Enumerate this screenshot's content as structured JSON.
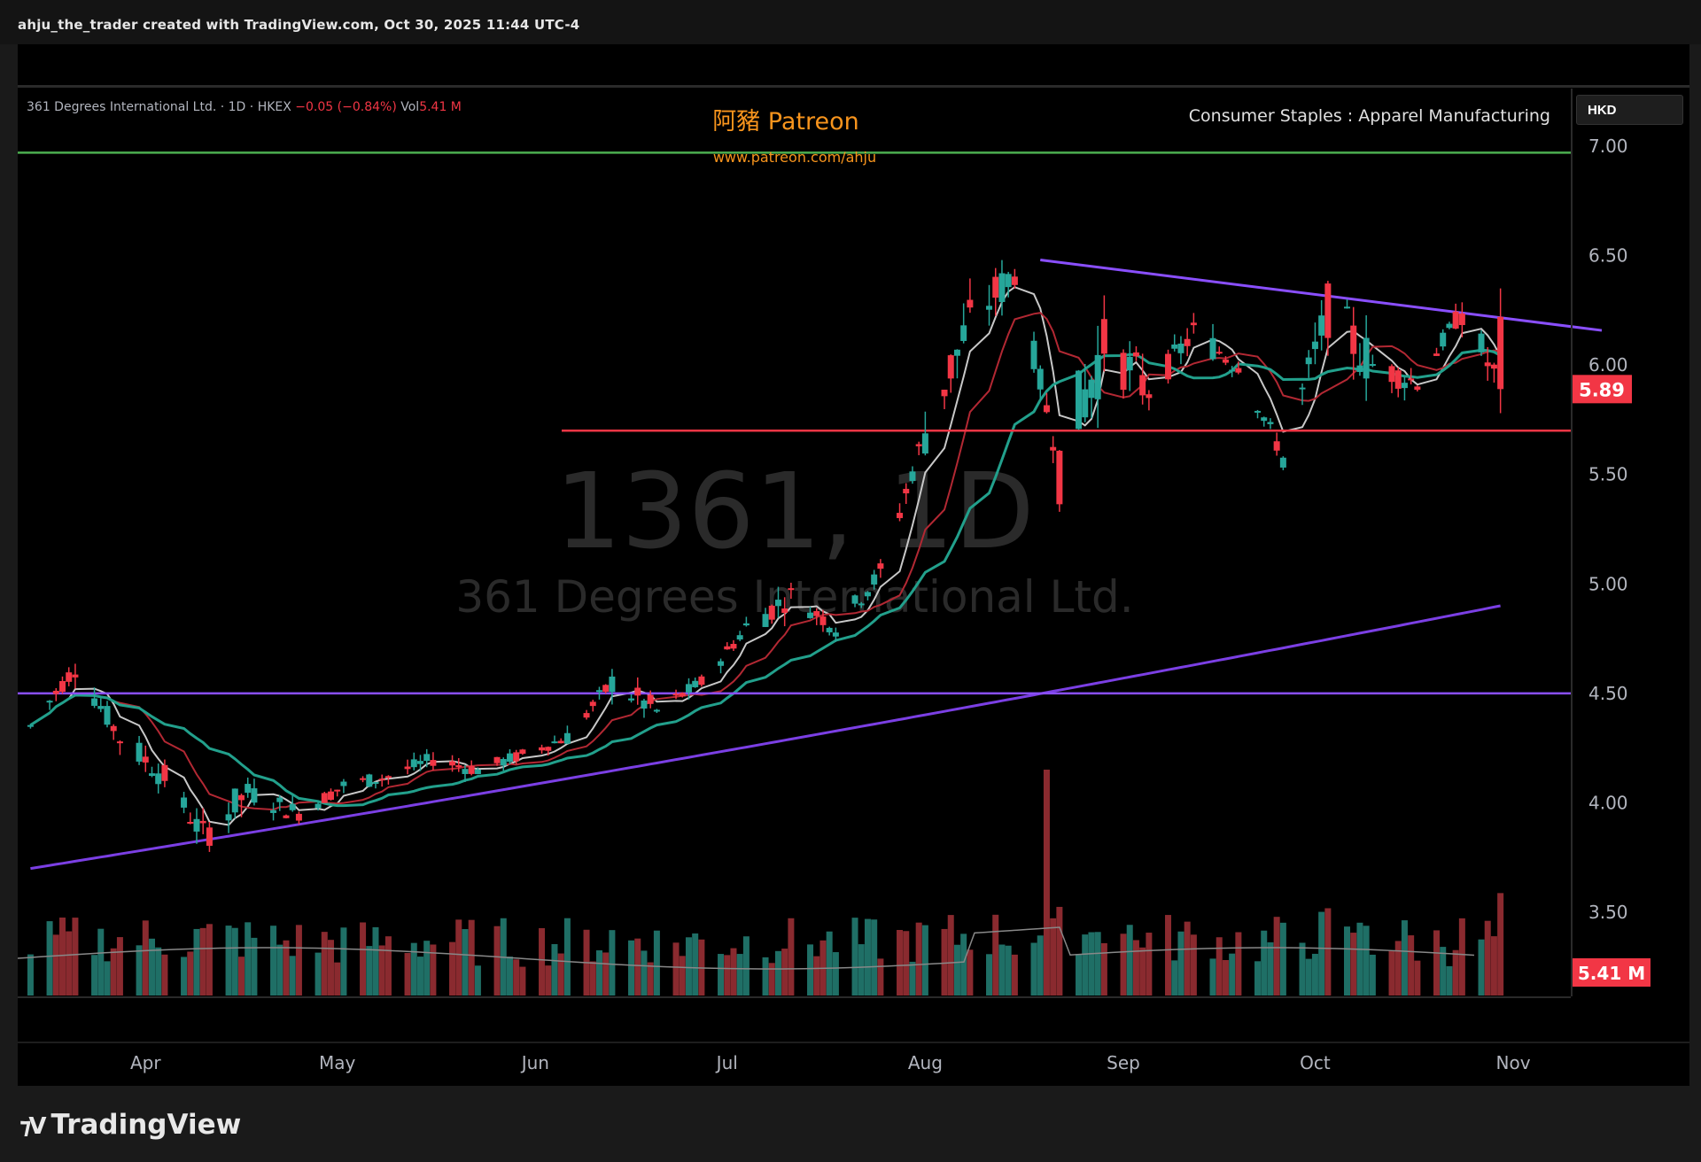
{
  "attribution": "ahju_the_trader created with TradingView.com, Oct 30, 2025 11:44 UTC-4",
  "legend": {
    "instrument": "361 Degrees International Ltd. · 1D · HKEX",
    "change": "−0.05 (−0.84%)",
    "vol_label": "Vol",
    "vol_value": "5.41 M"
  },
  "watermark": {
    "title": "阿豬 Patreon",
    "url": "www.patreon.com/ahju"
  },
  "sector": "Consumer Staples : Apparel Manufacturing",
  "currency": "HKD",
  "symbol_watermark": "1361, 1D",
  "name_watermark": "361 Degrees International Ltd.",
  "brand": "TradingView",
  "colors": {
    "up": "#26a69a",
    "down": "#f23645",
    "ma_fast": "#c8c8c8",
    "ma_mid": "#b22833",
    "ma_slow": "#22a08c",
    "ma_long": "#7b3fe4",
    "resistance": "#4caf50",
    "support": "#f23645",
    "trendline": "#8a4fff"
  },
  "chart_data": {
    "type": "candlestick",
    "x_axis_labels": [
      "Apr",
      "May",
      "Jun",
      "Jul",
      "Aug",
      "Sep",
      "Oct",
      "Nov"
    ],
    "y_ticks": [
      "7.00",
      "6.50",
      "6.00",
      "5.50",
      "5.00",
      "4.50",
      "4.00",
      "3.50"
    ],
    "ylim": [
      3.2,
      7.1
    ],
    "last_price": "5.89",
    "last_volume": "5.41 M",
    "ohlc_sampled": [
      {
        "date": "2025-03-14",
        "o": 4.25,
        "h": 4.42,
        "l": 4.18,
        "c": 4.35
      },
      {
        "date": "2025-03-21",
        "o": 4.4,
        "h": 4.68,
        "l": 4.38,
        "c": 4.62
      },
      {
        "date": "2025-03-28",
        "o": 4.58,
        "h": 4.6,
        "l": 4.22,
        "c": 4.3
      },
      {
        "date": "2025-04-04",
        "o": 4.3,
        "h": 4.38,
        "l": 4.05,
        "c": 4.12
      },
      {
        "date": "2025-04-10",
        "o": 4.1,
        "h": 4.15,
        "l": 3.7,
        "c": 3.85
      },
      {
        "date": "2025-04-17",
        "o": 3.85,
        "h": 4.1,
        "l": 3.82,
        "c": 4.05
      },
      {
        "date": "2025-04-25",
        "o": 4.05,
        "h": 4.1,
        "l": 3.9,
        "c": 3.95
      },
      {
        "date": "2025-05-02",
        "o": 3.95,
        "h": 4.12,
        "l": 3.92,
        "c": 4.08
      },
      {
        "date": "2025-05-09",
        "o": 4.08,
        "h": 4.18,
        "l": 3.98,
        "c": 4.12
      },
      {
        "date": "2025-05-16",
        "o": 4.12,
        "h": 4.26,
        "l": 4.05,
        "c": 4.2
      },
      {
        "date": "2025-05-23",
        "o": 4.2,
        "h": 4.28,
        "l": 4.1,
        "c": 4.15
      },
      {
        "date": "2025-05-30",
        "o": 4.15,
        "h": 4.25,
        "l": 4.08,
        "c": 4.22
      },
      {
        "date": "2025-06-06",
        "o": 4.22,
        "h": 4.38,
        "l": 4.15,
        "c": 4.3
      },
      {
        "date": "2025-06-13",
        "o": 4.3,
        "h": 4.62,
        "l": 4.28,
        "c": 4.55
      },
      {
        "date": "2025-06-20",
        "o": 4.55,
        "h": 4.58,
        "l": 4.38,
        "c": 4.42
      },
      {
        "date": "2025-06-27",
        "o": 4.42,
        "h": 4.6,
        "l": 4.4,
        "c": 4.55
      },
      {
        "date": "2025-07-04",
        "o": 4.55,
        "h": 4.85,
        "l": 4.5,
        "c": 4.8
      },
      {
        "date": "2025-07-11",
        "o": 4.8,
        "h": 5.0,
        "l": 4.75,
        "c": 4.95
      },
      {
        "date": "2025-07-18",
        "o": 4.95,
        "h": 4.98,
        "l": 4.72,
        "c": 4.8
      },
      {
        "date": "2025-07-25",
        "o": 4.8,
        "h": 5.1,
        "l": 4.78,
        "c": 5.05
      },
      {
        "date": "2025-08-01",
        "o": 5.05,
        "h": 5.75,
        "l": 5.0,
        "c": 5.7
      },
      {
        "date": "2025-08-08",
        "o": 5.7,
        "h": 6.25,
        "l": 5.65,
        "c": 6.2
      },
      {
        "date": "2025-08-15",
        "o": 6.2,
        "h": 6.48,
        "l": 6.1,
        "c": 6.42
      },
      {
        "date": "2025-08-22",
        "o": 6.45,
        "h": 6.5,
        "l": 5.42,
        "c": 5.55
      },
      {
        "date": "2025-08-29",
        "o": 5.55,
        "h": 6.2,
        "l": 5.5,
        "c": 6.1
      },
      {
        "date": "2025-09-05",
        "o": 6.1,
        "h": 6.15,
        "l": 5.8,
        "c": 5.88
      },
      {
        "date": "2025-09-12",
        "o": 5.88,
        "h": 6.22,
        "l": 5.85,
        "c": 6.15
      },
      {
        "date": "2025-09-19",
        "o": 6.15,
        "h": 6.2,
        "l": 5.95,
        "c": 6.0
      },
      {
        "date": "2025-09-26",
        "o": 6.0,
        "h": 6.05,
        "l": 5.5,
        "c": 5.58
      },
      {
        "date": "2025-10-03",
        "o": 5.58,
        "h": 6.28,
        "l": 5.55,
        "c": 6.25
      },
      {
        "date": "2025-10-10",
        "o": 6.25,
        "h": 6.28,
        "l": 5.92,
        "c": 6.0
      },
      {
        "date": "2025-10-17",
        "o": 6.0,
        "h": 6.05,
        "l": 5.8,
        "c": 5.92
      },
      {
        "date": "2025-10-24",
        "o": 5.92,
        "h": 6.38,
        "l": 5.88,
        "c": 6.25
      },
      {
        "date": "2025-10-30",
        "o": 6.22,
        "h": 6.35,
        "l": 5.78,
        "c": 5.89
      }
    ],
    "horizontal_lines": [
      {
        "price": 6.97,
        "color": "resistance"
      },
      {
        "price": 5.7,
        "color": "support"
      },
      {
        "price": 4.5,
        "color": "trendline"
      }
    ],
    "trendline": {
      "from": {
        "date": "2025-08-19",
        "price": 6.48
      },
      "to": {
        "date": "2025-11-01",
        "price": 6.15
      }
    },
    "volume_peak_date": "2025-08-20"
  }
}
